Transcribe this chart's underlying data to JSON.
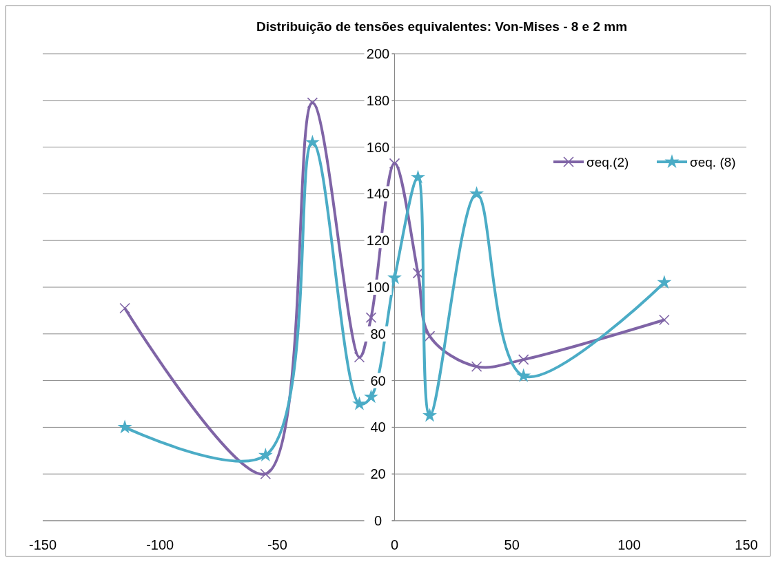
{
  "chart_data": {
    "type": "line",
    "title": "Distribuição de tensões equivalentes: Von-Mises - 8 e 2 mm",
    "xlim": [
      -150,
      150
    ],
    "xticks": [
      -150,
      -100,
      -50,
      0,
      50,
      100,
      150
    ],
    "ylim": [
      0,
      200
    ],
    "yticks": [
      0,
      20,
      40,
      60,
      80,
      100,
      120,
      140,
      160,
      180,
      200
    ],
    "grid": "y",
    "legend": "right",
    "series": [
      {
        "name": "σeq.(2)",
        "color": "#7f64a6",
        "marker": "cross",
        "x": [
          -115,
          -55,
          -35,
          -15,
          -10,
          0,
          10,
          15,
          35,
          55,
          115
        ],
        "values": [
          91,
          20,
          179,
          70,
          87,
          153,
          106,
          79,
          66,
          69,
          86
        ]
      },
      {
        "name": "σeq. (8)",
        "color": "#4bacc6",
        "marker": "star",
        "x": [
          -115,
          -55,
          -35,
          -15,
          -10,
          0,
          10,
          15,
          35,
          55,
          115
        ],
        "values": [
          40,
          28,
          162,
          50,
          53,
          104,
          147,
          45,
          140,
          62,
          102
        ]
      }
    ]
  }
}
